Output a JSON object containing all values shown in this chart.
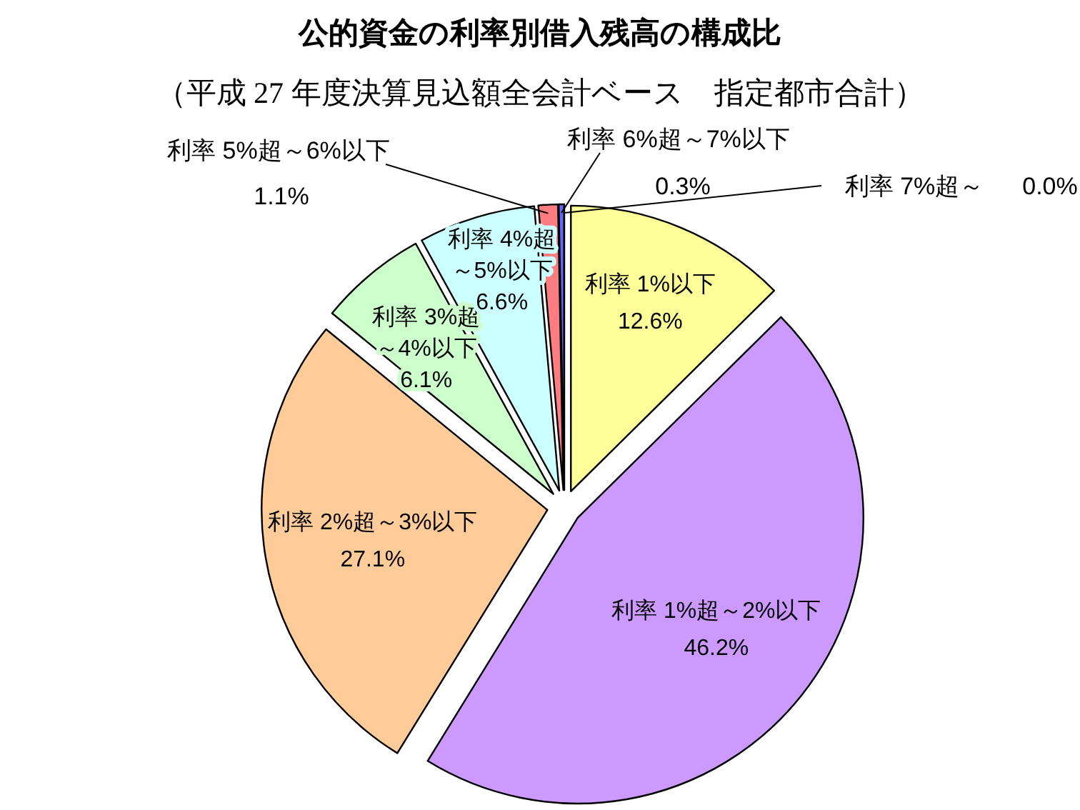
{
  "chart_data": {
    "type": "pie",
    "title": "公的資金の利率別借入残高の構成比",
    "subtitle": "（平成 27 年度決算見込額全会計ベース　指定都市合計）",
    "categories": [
      "利率 1%以下",
      "利率 1%超～2%以下",
      "利率 2%超～3%以下",
      "利率 3%超～4%以下",
      "利率 4%超～5%以下",
      "利率 5%超～6%以下",
      "利率 6%超～7%以下",
      "利率 7%超～"
    ],
    "values": [
      12.6,
      46.2,
      27.1,
      6.1,
      6.6,
      1.1,
      0.3,
      0.0
    ],
    "colors": [
      "#ffff99",
      "#cc99ff",
      "#ffcc99",
      "#ccffcc",
      "#ccffff",
      "#ff7c80",
      "#6666ff",
      "#000080"
    ],
    "value_labels": [
      "12.6%",
      "46.2%",
      "27.1%",
      "6.1%",
      "6.6%",
      "1.1%",
      "0.3%",
      "0.0%"
    ]
  }
}
